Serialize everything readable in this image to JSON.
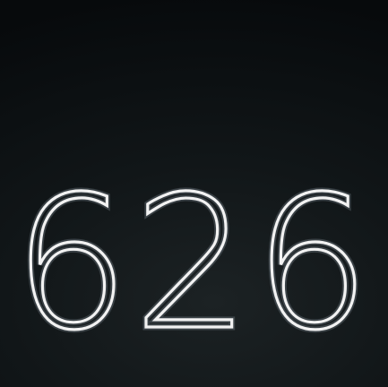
{
  "display": {
    "number": "626"
  },
  "colors": {
    "background": "#0b1012",
    "text": "#f2f2f2"
  }
}
